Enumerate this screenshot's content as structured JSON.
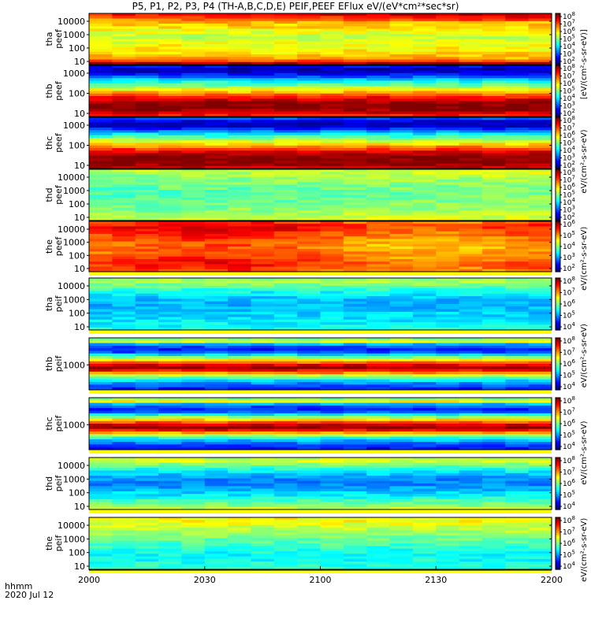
{
  "title": "P5, P1, P2, P3, P4 (TH-A,B,C,D,E) PEIF,PEEF EFlux eV/(eV*cm²*sec*sr)",
  "x_unit": "hhmm",
  "date": "2020 Jul 12",
  "chart_data": {
    "type": "heatmap",
    "x_ticks": [
      "2000",
      "2030",
      "2100",
      "2130",
      "2200"
    ],
    "x_range": [
      "20:00",
      "22:00"
    ],
    "y_scale": "log",
    "colorbar_scale": "log",
    "colormap": "rainbow (violet-blue-cyan-green-yellow-red)",
    "panels": [
      {
        "name": "tha-peef",
        "ylabel": [
          "tha",
          "peef"
        ],
        "yticks": [
          "10",
          "100",
          "1000",
          "10000"
        ],
        "colorbar_ticks": [
          "10^2",
          "10^3",
          "10^4",
          "10^5",
          "10^6",
          "10^7",
          "10^8"
        ],
        "dominant_levels": [
          "yellow",
          "green",
          "orange",
          "red"
        ]
      },
      {
        "name": "thb-peef",
        "ylabel": [
          "thb",
          "peef"
        ],
        "yticks": [
          "10",
          "100",
          "1000"
        ],
        "colorbar_ticks": [
          "10^2",
          "10^3",
          "10^4",
          "10^5",
          "10^6",
          "10^7",
          "10^8"
        ],
        "dominant_levels": [
          "blue",
          "cyan",
          "yellow",
          "red"
        ]
      },
      {
        "name": "thc-peef",
        "ylabel": [
          "thc",
          "peef"
        ],
        "yticks": [
          "10",
          "100",
          "1000"
        ],
        "colorbar_ticks": [
          "10^2",
          "10^3",
          "10^4",
          "10^5",
          "10^6",
          "10^7",
          "10^8"
        ],
        "dominant_levels": [
          "blue",
          "cyan",
          "yellow",
          "red"
        ]
      },
      {
        "name": "thd-peef",
        "ylabel": [
          "thd",
          "peef"
        ],
        "yticks": [
          "10",
          "100",
          "1000",
          "10000"
        ],
        "colorbar_ticks": [
          "10^2",
          "10^3",
          "10^4",
          "10^5",
          "10^6",
          "10^7",
          "10^8"
        ],
        "dominant_levels": [
          "green",
          "cyan"
        ]
      },
      {
        "name": "the-peef",
        "ylabel": [
          "the",
          "peef"
        ],
        "yticks": [
          "10",
          "100",
          "1000",
          "10000"
        ],
        "colorbar_ticks": [
          "10^2",
          "10^3",
          "10^4",
          "10^5",
          "10^6"
        ],
        "dominant_levels": [
          "yellow",
          "orange"
        ]
      },
      {
        "name": "tha-peif",
        "ylabel": [
          "tha",
          "peif"
        ],
        "yticks": [
          "10",
          "100",
          "1000",
          "10000"
        ],
        "colorbar_ticks": [
          "10^4",
          "10^5",
          "10^6",
          "10^7",
          "10^8"
        ],
        "dominant_levels": [
          "green",
          "cyan",
          "blue"
        ]
      },
      {
        "name": "thb-peif",
        "ylabel": [
          "thb",
          "peif"
        ],
        "yticks": [
          "1000"
        ],
        "colorbar_ticks": [
          "10^4",
          "10^5",
          "10^6",
          "10^7",
          "10^8"
        ],
        "dominant_levels": [
          "blue",
          "green",
          "yellow",
          "red"
        ]
      },
      {
        "name": "thc-peif",
        "ylabel": [
          "thc",
          "peif"
        ],
        "yticks": [
          "1000"
        ],
        "colorbar_ticks": [
          "10^4",
          "10^5",
          "10^6",
          "10^7",
          "10^8"
        ],
        "dominant_levels": [
          "blue",
          "green",
          "yellow",
          "red"
        ]
      },
      {
        "name": "thd-peif",
        "ylabel": [
          "thd",
          "peif"
        ],
        "yticks": [
          "10",
          "100",
          "1000",
          "10000"
        ],
        "colorbar_ticks": [
          "10^4",
          "10^5",
          "10^6",
          "10^7",
          "10^8"
        ],
        "dominant_levels": [
          "green",
          "cyan",
          "blue"
        ]
      },
      {
        "name": "the-peif",
        "ylabel": [
          "the",
          "peif"
        ],
        "yticks": [
          "10",
          "100",
          "1000",
          "10000"
        ],
        "colorbar_ticks": [
          "10^4",
          "10^5",
          "10^6",
          "10^7",
          "10^8"
        ],
        "dominant_levels": [
          "cyan",
          "blue"
        ]
      }
    ],
    "colorbar_labels": [
      "eV/(cm²-s-sr-eV)",
      "eV/(cm²-s-sr-eV)",
      "eV/(cm²-s-sr-eV)",
      "eV/(cm²-s-sr-eV)",
      "eV/(cm²-s-sr-eV)",
      "[eV/(cm²-s-sr-eV)]"
    ]
  }
}
